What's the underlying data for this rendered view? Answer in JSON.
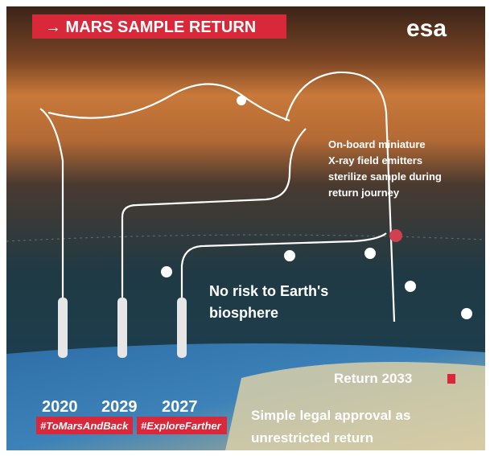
{
  "header": {
    "title": "→ MARS SAMPLE RETURN",
    "logo": "esa"
  },
  "callouts": {
    "sterilize": [
      "On-board miniature",
      "X-ray field emitters",
      "sterilize sample during",
      "return journey"
    ],
    "biosphere": [
      "No risk to Earth's",
      "biosphere"
    ],
    "return": "Return 2033",
    "legal": [
      "Simple legal approval as",
      "unrestricted return"
    ]
  },
  "launches": [
    {
      "year": "2020"
    },
    {
      "year": "2029"
    },
    {
      "year": "2027"
    }
  ],
  "hashtags": [
    "#ToMarsAndBack",
    "#ExploreFarther"
  ]
}
